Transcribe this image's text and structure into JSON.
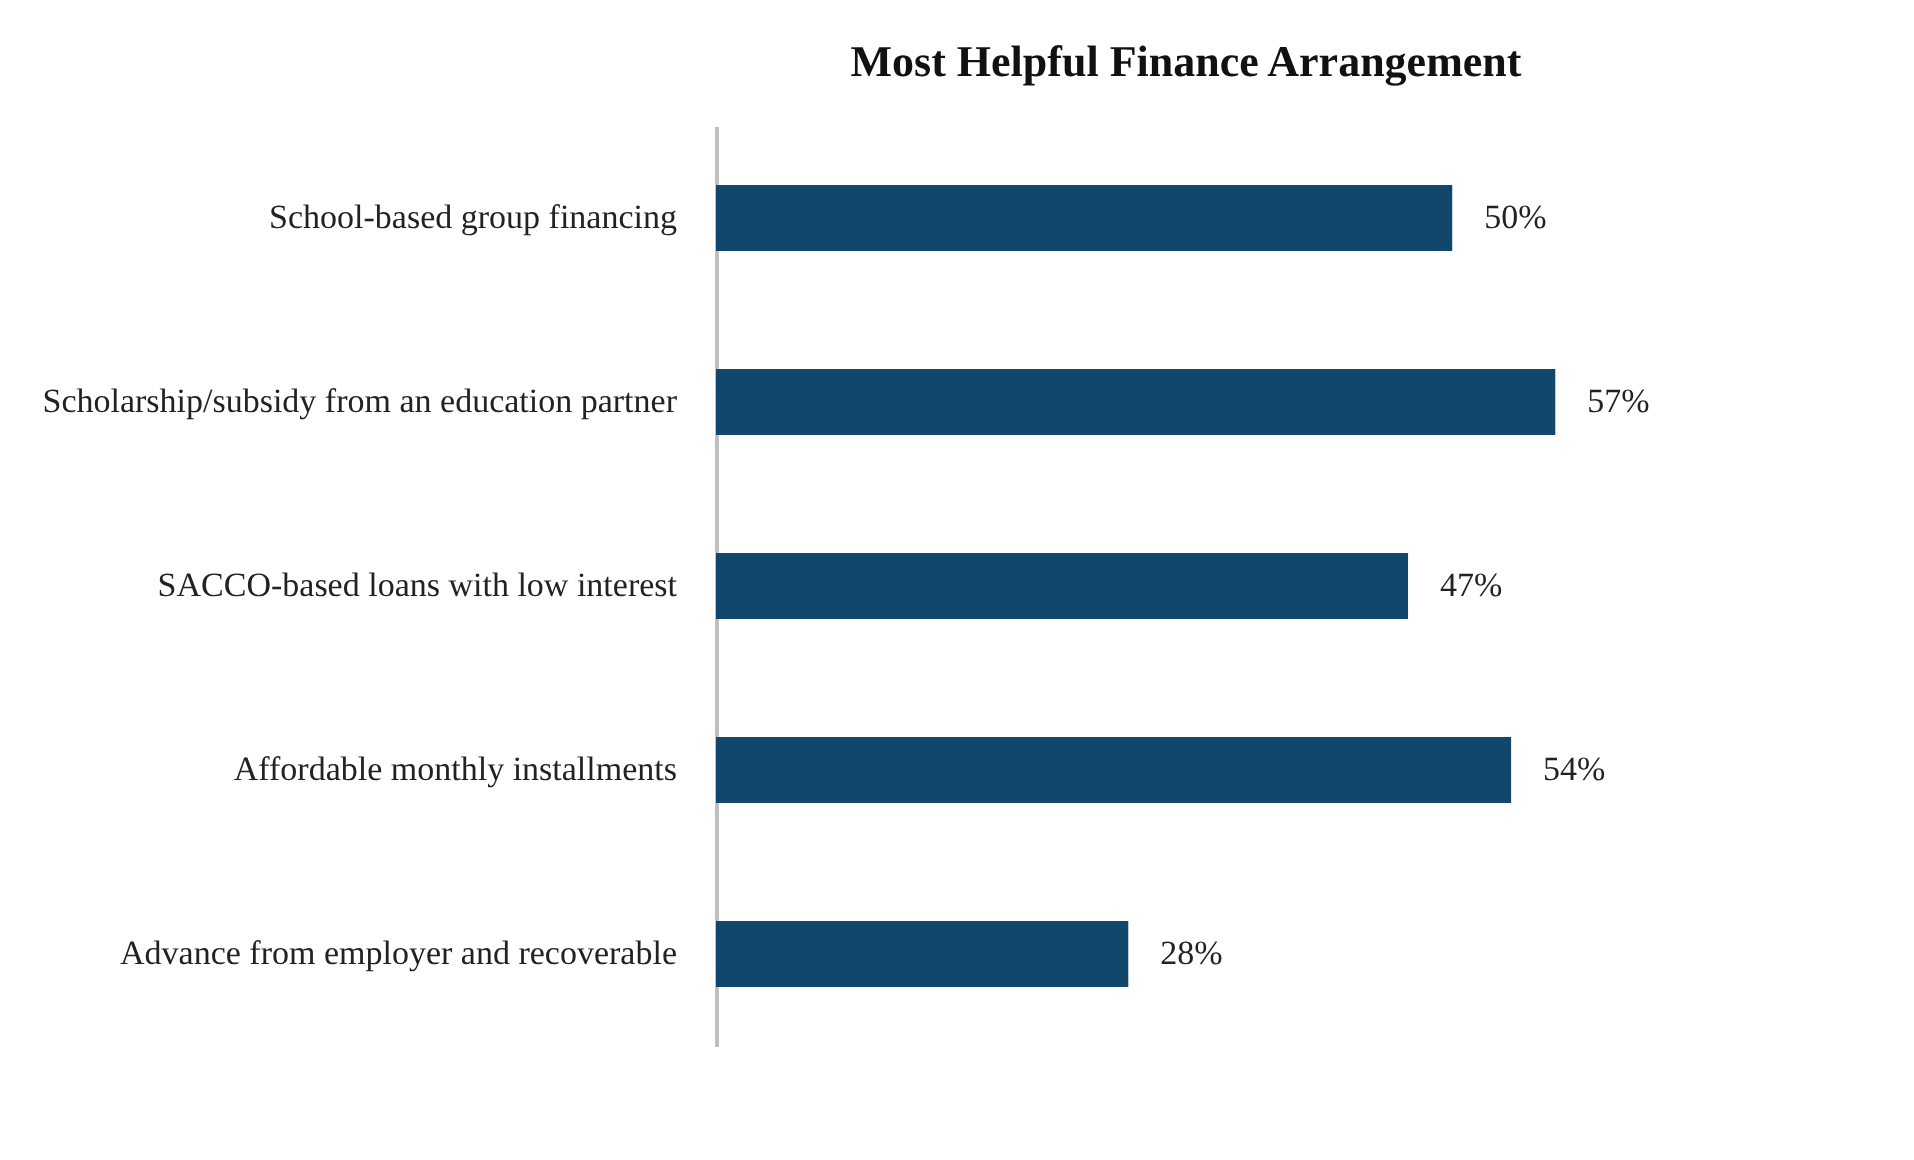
{
  "chart_data": {
    "type": "bar",
    "orientation": "horizontal",
    "title": "Most Helpful Finance Arrangement",
    "categories": [
      "School-based group financing",
      "Scholarship/subsidy from an education partner",
      "SACCO-based loans with low interest",
      "Affordable monthly installments",
      "Advance from employer and recoverable"
    ],
    "values": [
      50,
      57,
      47,
      54,
      28
    ],
    "value_labels": [
      "50%",
      "57%",
      "47%",
      "54%",
      "28%"
    ],
    "color": "#12466b"
  }
}
